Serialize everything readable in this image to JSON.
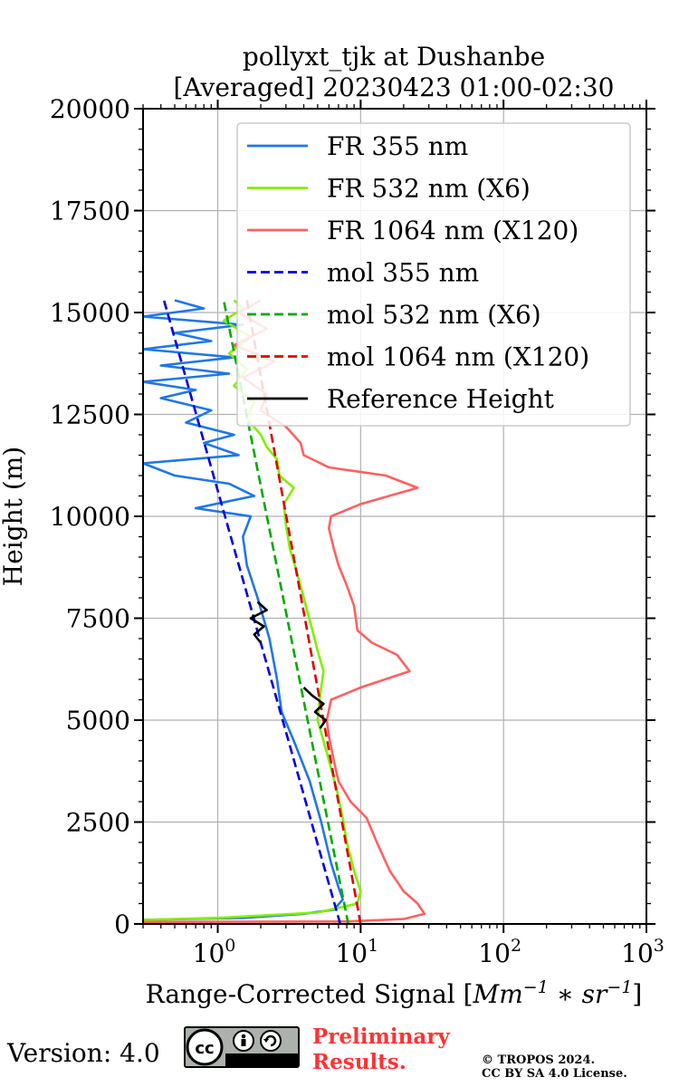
{
  "chart_data": {
    "type": "line",
    "title": [
      "pollyxt_tjk at Dushanbe",
      "[Averaged] 20230423 01:00-02:30"
    ],
    "xlabel": "Range-Corrected Signal [Mm⁻¹ * sr⁻¹]",
    "ylabel": "Height (m)",
    "xscale": "log",
    "xlim": [
      0.3,
      1000
    ],
    "ylim": [
      0,
      20000
    ],
    "x_ticks": [
      1,
      10,
      100,
      1000
    ],
    "x_tick_labels": [
      {
        "base": "10",
        "exp": "0"
      },
      {
        "base": "10",
        "exp": "1"
      },
      {
        "base": "10",
        "exp": "2"
      },
      {
        "base": "10",
        "exp": "3"
      }
    ],
    "y_ticks": [
      0,
      2500,
      5000,
      7500,
      10000,
      12500,
      15000,
      17500,
      20000
    ],
    "y_tick_labels": [
      "0",
      "2500",
      "5000",
      "7500",
      "10000",
      "12500",
      "15000",
      "17500",
      "20000"
    ],
    "grid": true,
    "legend_position": "top-right",
    "series": [
      {
        "name": "FR 355 nm",
        "color": "#1f77e6",
        "style": "solid",
        "points": [
          [
            0.3,
            100
          ],
          [
            1.5,
            150
          ],
          [
            4,
            250
          ],
          [
            6.5,
            350
          ],
          [
            7.5,
            600
          ],
          [
            7,
            900
          ],
          [
            6.2,
            1500
          ],
          [
            5.3,
            2500
          ],
          [
            4.4,
            3500
          ],
          [
            3.4,
            4500
          ],
          [
            2.8,
            5200
          ],
          [
            2.6,
            6000
          ],
          [
            2.3,
            7000
          ],
          [
            1.9,
            8000
          ],
          [
            1.6,
            8800
          ],
          [
            1.5,
            9500
          ],
          [
            1.7,
            10000
          ],
          [
            0.7,
            10200
          ],
          [
            1.8,
            10500
          ],
          [
            1.2,
            10800
          ],
          [
            0.5,
            11000
          ],
          [
            0.3,
            11300
          ],
          [
            1.4,
            11500
          ],
          [
            0.8,
            11800
          ],
          [
            1.3,
            12000
          ],
          [
            0.6,
            12300
          ],
          [
            0.9,
            12600
          ],
          [
            0.4,
            12900
          ],
          [
            0.7,
            13100
          ],
          [
            0.3,
            13300
          ],
          [
            1.2,
            13500
          ],
          [
            0.4,
            13700
          ],
          [
            1.3,
            13900
          ],
          [
            0.3,
            14100
          ],
          [
            0.9,
            14300
          ],
          [
            0.5,
            14500
          ],
          [
            1.5,
            14700
          ],
          [
            0.3,
            14900
          ],
          [
            0.8,
            15100
          ],
          [
            0.5,
            15300
          ]
        ]
      },
      {
        "name": "FR 532 nm (X6)",
        "color": "#80f000",
        "style": "solid",
        "points": [
          [
            0.3,
            100
          ],
          [
            1,
            150
          ],
          [
            5,
            280
          ],
          [
            9.5,
            500
          ],
          [
            10,
            800
          ],
          [
            9,
            1300
          ],
          [
            8,
            2000
          ],
          [
            7.5,
            2600
          ],
          [
            6.8,
            3300
          ],
          [
            5.8,
            4200
          ],
          [
            5,
            5000
          ],
          [
            5.2,
            5600
          ],
          [
            5.5,
            6200
          ],
          [
            5,
            6700
          ],
          [
            4.6,
            7200
          ],
          [
            4,
            8000
          ],
          [
            3.6,
            8600
          ],
          [
            3.2,
            9200
          ],
          [
            3,
            9800
          ],
          [
            2.9,
            10300
          ],
          [
            3.4,
            10700
          ],
          [
            2.7,
            11000
          ],
          [
            2.6,
            11400
          ],
          [
            2.2,
            11700
          ],
          [
            2,
            12000
          ],
          [
            1.6,
            12400
          ],
          [
            1.8,
            12800
          ],
          [
            1.3,
            13200
          ],
          [
            1.6,
            13600
          ],
          [
            1.2,
            14000
          ],
          [
            1.7,
            14400
          ],
          [
            1.1,
            14800
          ],
          [
            1.5,
            15100
          ],
          [
            1.3,
            15300
          ]
        ]
      },
      {
        "name": "FR 1064 nm (X120)",
        "color": "#ff6060",
        "style": "solid",
        "points": [
          [
            0.3,
            50
          ],
          [
            8,
            60
          ],
          [
            20,
            120
          ],
          [
            28,
            250
          ],
          [
            25,
            500
          ],
          [
            20,
            800
          ],
          [
            16,
            1300
          ],
          [
            13,
            2000
          ],
          [
            11,
            2600
          ],
          [
            8.5,
            3000
          ],
          [
            7,
            3500
          ],
          [
            6.5,
            4000
          ],
          [
            6,
            4600
          ],
          [
            5.8,
            5000
          ],
          [
            6.2,
            5500
          ],
          [
            10,
            5800
          ],
          [
            22,
            6200
          ],
          [
            18,
            6600
          ],
          [
            12,
            6900
          ],
          [
            9.5,
            7200
          ],
          [
            9,
            7800
          ],
          [
            8,
            8300
          ],
          [
            7,
            8800
          ],
          [
            6.5,
            9200
          ],
          [
            6,
            9700
          ],
          [
            6.2,
            10000
          ],
          [
            10,
            10300
          ],
          [
            25,
            10700
          ],
          [
            15,
            11000
          ],
          [
            6,
            11200
          ],
          [
            4,
            11500
          ],
          [
            3.8,
            11800
          ],
          [
            3,
            12200
          ],
          [
            2,
            12600
          ],
          [
            2.2,
            13000
          ],
          [
            1.5,
            13400
          ],
          [
            2.5,
            13800
          ],
          [
            1.3,
            14200
          ],
          [
            2.2,
            14600
          ],
          [
            1.4,
            15000
          ],
          [
            2,
            15300
          ]
        ]
      },
      {
        "name": "mol 355 nm",
        "color": "#0000dd",
        "style": "dashed",
        "points": [
          [
            7.2,
            0
          ],
          [
            0.42,
            15300
          ]
        ]
      },
      {
        "name": "mol 532 nm (X6)",
        "color": "#00aa00",
        "style": "dashed",
        "points": [
          [
            8.2,
            0
          ],
          [
            1.1,
            15300
          ]
        ]
      },
      {
        "name": "mol 1064 nm (X120)",
        "color": "#dd0000",
        "style": "dashed",
        "points": [
          [
            10,
            0
          ],
          [
            1.6,
            15300
          ]
        ]
      },
      {
        "name": "Reference Height",
        "color": "#000000",
        "style": "solid",
        "segments": [
          [
            [
              2,
              6900
            ],
            [
              1.8,
              7100
            ],
            [
              2.1,
              7300
            ],
            [
              1.7,
              7500
            ],
            [
              2.2,
              7700
            ],
            [
              1.9,
              7900
            ]
          ],
          [
            [
              4,
              5800
            ],
            [
              4.6,
              5600
            ],
            [
              5.5,
              5400
            ],
            [
              4.8,
              5200
            ],
            [
              5.7,
              5000
            ],
            [
              5.2,
              4800
            ]
          ]
        ]
      }
    ]
  },
  "footer": {
    "version": "Version: 4.0",
    "cc_by": "BY",
    "cc_sa": "SA",
    "preliminary_line1": "Preliminary",
    "preliminary_line2": "Results.",
    "copyright_line1": "© TROPOS 2024.",
    "copyright_line2": "CC BY SA 4.0 License."
  }
}
